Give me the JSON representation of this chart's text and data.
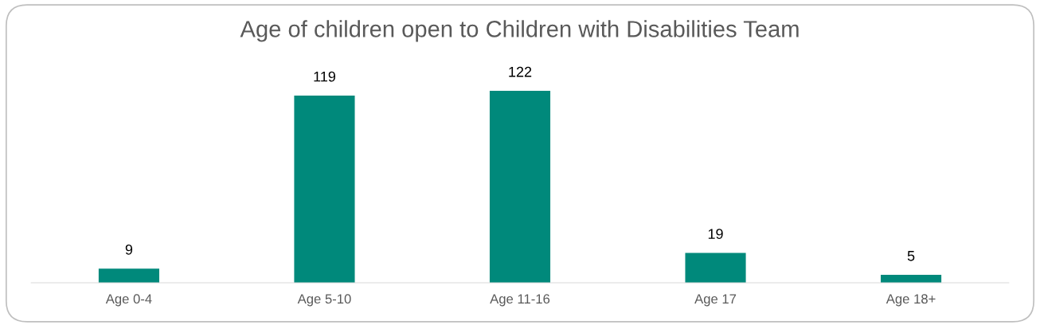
{
  "chart_data": {
    "type": "bar",
    "title": "Age of children open to Children with Disabilities Team",
    "categories": [
      "Age 0-4",
      "Age 5-10",
      "Age 11-16",
      "Age 17",
      "Age 18+"
    ],
    "values": [
      9,
      119,
      122,
      19,
      5
    ],
    "color": "#00897b",
    "tick_labels": "x",
    "data_labels": true,
    "grid": false,
    "legend": false
  }
}
